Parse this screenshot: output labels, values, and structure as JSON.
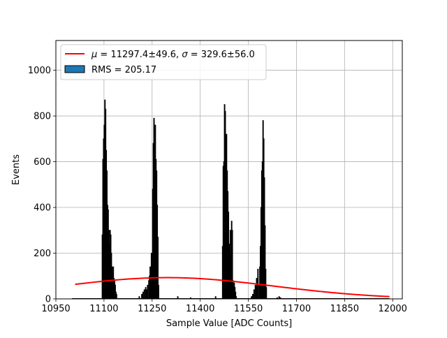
{
  "chart_data": {
    "type": "histogram",
    "title": "",
    "xlabel": "Sample Value [ADC Counts]",
    "ylabel": "Events",
    "xlim": [
      10950,
      12030
    ],
    "ylim": [
      0,
      1130
    ],
    "xticks": [
      10950,
      11100,
      11250,
      11400,
      11550,
      11700,
      11850,
      12000
    ],
    "yticks": [
      0,
      200,
      400,
      600,
      800,
      1000
    ],
    "grid": true,
    "legend": {
      "placement": "top-left",
      "entries": [
        {
          "label_pre": "μ",
          "label_mid": " = 11297.4±49.6, ",
          "label_sigma": "σ",
          "label_post": " = 329.6±56.0",
          "style": "line",
          "color": "#ff0000"
        },
        {
          "label": "RMS = 205.17",
          "style": "patch",
          "color": "#1f77b4"
        }
      ]
    },
    "series": [
      {
        "kind": "histogram",
        "color": "#1f77b4",
        "edgecolor": "#000000",
        "bins": [
          [
            11095,
            280
          ],
          [
            11097,
            610
          ],
          [
            11099,
            700
          ],
          [
            11101,
            760
          ],
          [
            11103,
            870
          ],
          [
            11105,
            830
          ],
          [
            11107,
            650
          ],
          [
            11109,
            560
          ],
          [
            11111,
            410
          ],
          [
            11113,
            390
          ],
          [
            11115,
            300
          ],
          [
            11117,
            240
          ],
          [
            11119,
            300
          ],
          [
            11121,
            280
          ],
          [
            11123,
            200
          ],
          [
            11125,
            140
          ],
          [
            11127,
            110
          ],
          [
            11129,
            140
          ],
          [
            11131,
            90
          ],
          [
            11133,
            80
          ],
          [
            11135,
            60
          ],
          [
            11137,
            30
          ],
          [
            11139,
            20
          ],
          [
            11210,
            10
          ],
          [
            11218,
            20
          ],
          [
            11222,
            30
          ],
          [
            11226,
            40
          ],
          [
            11230,
            50
          ],
          [
            11232,
            40
          ],
          [
            11236,
            60
          ],
          [
            11240,
            80
          ],
          [
            11242,
            100
          ],
          [
            11244,
            140
          ],
          [
            11246,
            120
          ],
          [
            11248,
            200
          ],
          [
            11250,
            160
          ],
          [
            11252,
            480
          ],
          [
            11254,
            680
          ],
          [
            11256,
            790
          ],
          [
            11258,
            740
          ],
          [
            11260,
            760
          ],
          [
            11262,
            610
          ],
          [
            11264,
            560
          ],
          [
            11266,
            410
          ],
          [
            11268,
            270
          ],
          [
            11270,
            60
          ],
          [
            11330,
            10
          ],
          [
            11370,
            5
          ],
          [
            11448,
            10
          ],
          [
            11470,
            230
          ],
          [
            11472,
            580
          ],
          [
            11474,
            600
          ],
          [
            11476,
            850
          ],
          [
            11478,
            820
          ],
          [
            11480,
            710
          ],
          [
            11482,
            720
          ],
          [
            11484,
            560
          ],
          [
            11486,
            470
          ],
          [
            11488,
            380
          ],
          [
            11490,
            220
          ],
          [
            11492,
            240
          ],
          [
            11494,
            300
          ],
          [
            11496,
            200
          ],
          [
            11498,
            340
          ],
          [
            11500,
            300
          ],
          [
            11502,
            80
          ],
          [
            11504,
            60
          ],
          [
            11506,
            70
          ],
          [
            11508,
            50
          ],
          [
            11510,
            30
          ],
          [
            11512,
            10
          ],
          [
            11560,
            10
          ],
          [
            11564,
            20
          ],
          [
            11568,
            40
          ],
          [
            11572,
            60
          ],
          [
            11576,
            90
          ],
          [
            11580,
            130
          ],
          [
            11584,
            60
          ],
          [
            11586,
            140
          ],
          [
            11588,
            230
          ],
          [
            11590,
            400
          ],
          [
            11592,
            560
          ],
          [
            11594,
            600
          ],
          [
            11596,
            780
          ],
          [
            11598,
            700
          ],
          [
            11600,
            530
          ],
          [
            11602,
            320
          ],
          [
            11604,
            130
          ],
          [
            11606,
            50
          ],
          [
            11640,
            5
          ],
          [
            11646,
            10
          ],
          [
            11650,
            5
          ]
        ]
      },
      {
        "kind": "line",
        "name": "gaussian fit",
        "color": "#ff0000",
        "mu": 11297.4,
        "sigma": 329.6,
        "amplitude": 93,
        "xrange": [
          11010,
          11990
        ]
      }
    ]
  }
}
